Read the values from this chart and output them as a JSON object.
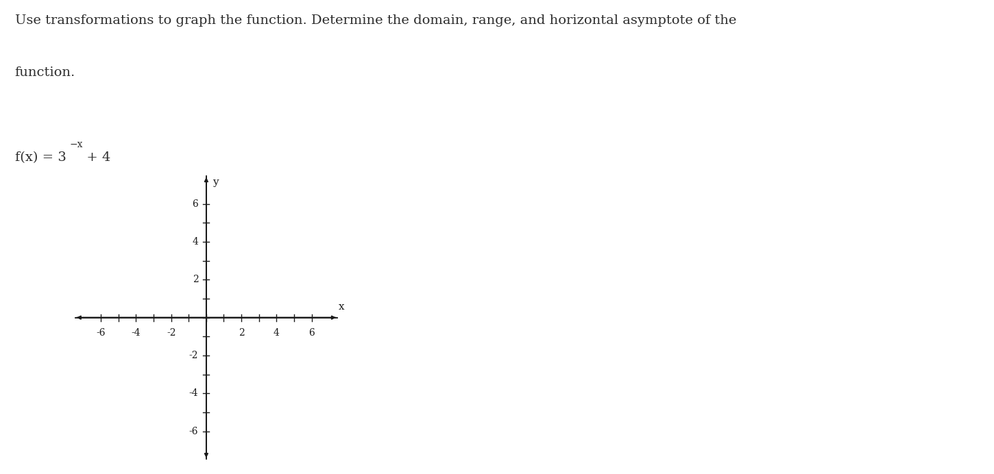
{
  "background_color": "#ffffff",
  "text_color": "#2d2d2d",
  "axis_color": "#1a1a1a",
  "tick_color": "#1a1a1a",
  "title_line1": "Use transformations to graph the function. Determine the domain, range, and horizontal asymptote of the",
  "title_line2": "function.",
  "formula_main": "f(x) = 3",
  "formula_sup": "−x",
  "formula_end": " + 4",
  "title_fontsize": 14,
  "formula_fontsize": 14,
  "formula_sup_fontsize": 10,
  "axis_label_fontsize": 11,
  "tick_fontsize": 10,
  "xlim": [
    -7.5,
    7.5
  ],
  "ylim": [
    -7.5,
    7.5
  ],
  "xticks": [
    -6,
    -4,
    -2,
    2,
    4,
    6
  ],
  "yticks": [
    -6,
    -4,
    -2,
    2,
    4,
    6
  ],
  "xlabel": "x",
  "ylabel": "y"
}
